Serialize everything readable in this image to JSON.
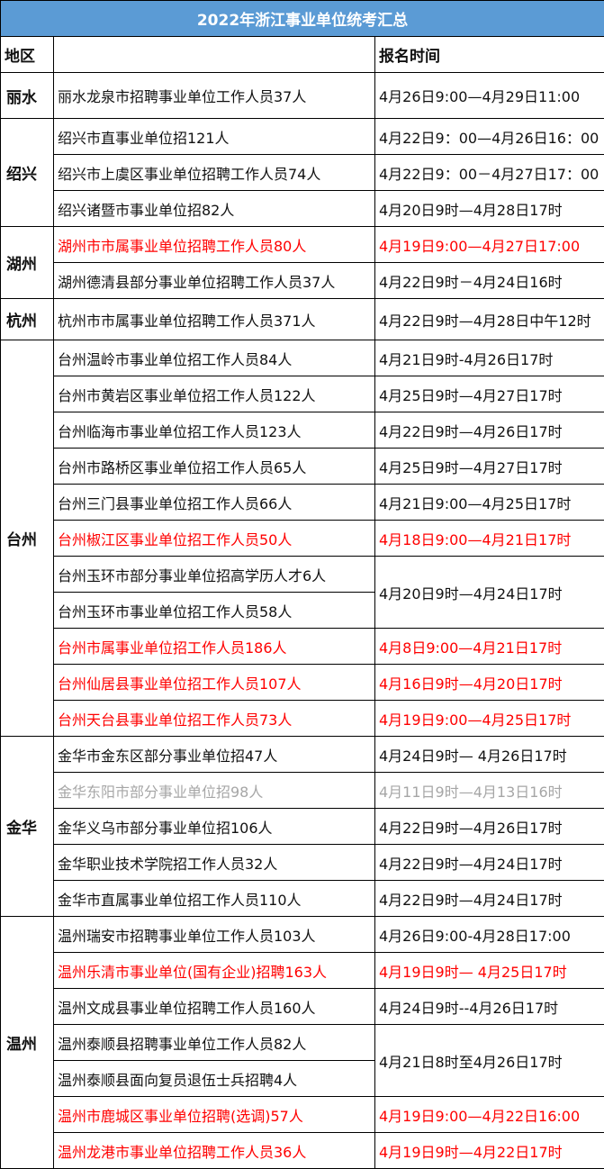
{
  "title": "2022年浙江事业单位统考汇总",
  "header": {
    "region": "地区",
    "item": "",
    "time": "报名时间"
  },
  "colors": {
    "title_bg": "#5b9bd5",
    "highlight": "#ff0000",
    "expired": "#a6a6a6"
  },
  "regions": [
    {
      "name": "丽水",
      "rows": [
        {
          "item": "丽水龙泉市招聘事业单位工作人员37人",
          "time": "4月26日9:00—4月29日11:00",
          "style": ""
        }
      ]
    },
    {
      "name": "绍兴",
      "rows": [
        {
          "item": "绍兴市直事业单位招121人",
          "time": "4月22日9：00—4月26日16：00",
          "style": ""
        },
        {
          "item": "绍兴市上虞区事业单位招聘工作人员74人",
          "time": "4月22日9：00－4月27日17：00",
          "style": ""
        },
        {
          "item": "绍兴诸暨市事业单位招82人",
          "time": "4月20日9时—4月28日17时",
          "style": ""
        }
      ]
    },
    {
      "name": "湖州",
      "rows": [
        {
          "item": "湖州市市属事业单位招聘工作人员80人",
          "time": "4月19日9:00—4月27日17:00",
          "style": "red"
        },
        {
          "item": "湖州德清县部分事业单位招聘工作人员37人",
          "time": "4月22日9时－4月24日16时",
          "style": ""
        }
      ]
    },
    {
      "name": "杭州",
      "rows": [
        {
          "item": "杭州市市属事业单位招聘工作人员371人",
          "time": "4月22日9时—4月28日中午12时",
          "style": ""
        }
      ]
    },
    {
      "name": "台州",
      "rows": [
        {
          "item": "台州温岭市事业单位招工作人员84人",
          "time": "4月21日9时-4月26日17时",
          "style": ""
        },
        {
          "item": "台州市黄岩区事业单位招工作人员122人",
          "time": "4月25日9时—4月27日17时",
          "style": ""
        },
        {
          "item": "台州临海市事业单位招工作人员123人",
          "time": "4月22日9时—4月26日17时",
          "style": ""
        },
        {
          "item": "台州市路桥区事业单位招工作人员65人",
          "time": "4月25日9时—4月27日17时",
          "style": ""
        },
        {
          "item": "台州三门县事业单位招工作人员66人",
          "time": "4月21日9:00—4月25日17时",
          "style": ""
        },
        {
          "item": "台州椒江区事业单位招工作人员50人",
          "time": "4月18日9:00—4月21日17时",
          "style": "red"
        },
        {
          "item": "台州玉环市部分事业单位招高学历人才6人",
          "time": "4月20日9时—4月24日17时",
          "style": "",
          "span": 2
        },
        {
          "item": "台州玉环市事业单位招工作人员58人",
          "time": null,
          "style": ""
        },
        {
          "item": "台州市属事业单位招工作人员186人",
          "time": "4月8日9:00—4月21日17时",
          "style": "red"
        },
        {
          "item": "台州仙居县事业单位招工作人员107人",
          "time": "4月16日9时—4月20日17时",
          "style": "red"
        },
        {
          "item": "台州天台县事业单位招工作人员73人",
          "time": "4月19日9:00—4月25日17时",
          "style": "red"
        }
      ]
    },
    {
      "name": "金华",
      "rows": [
        {
          "item": "金华市金东区部分事业单位招47人",
          "time": "4月24日9时— 4月26日17时",
          "style": ""
        },
        {
          "item": "金华东阳市部分事业单位招98人",
          "time": "4月11日9时—4月13日16时",
          "style": "gray"
        },
        {
          "item": "金华义乌市部分事业单位招106人",
          "time": "4月22日9时—4月26日17时",
          "style": ""
        },
        {
          "item": "金华职业技术学院招工作人员32人",
          "time": "4月22日9时—4月24日17时",
          "style": ""
        },
        {
          "item": "金华市直属事业单位招工作人员110人",
          "time": "4月22日9时—4月24日17时",
          "style": ""
        }
      ]
    },
    {
      "name": "温州",
      "rows": [
        {
          "item": "温州瑞安市招聘事业单位工作人员103人",
          "time": "4月26日9:00-4月28日17:00",
          "style": ""
        },
        {
          "item": "温州乐清市事业单位(国有企业)招聘163人",
          "time": "4月19日9时— 4月25日17时",
          "style": "red"
        },
        {
          "item": "温州文成县事业单位招聘工作人员160人",
          "time": "4月24日9时--4月26日17时",
          "style": ""
        },
        {
          "item": "温州泰顺县招聘事业单位工作人员82人",
          "time": "4月21日8时至4月26日17时",
          "style": "",
          "span": 2
        },
        {
          "item": "温州泰顺县面向复员退伍士兵招聘4人",
          "time": null,
          "style": ""
        },
        {
          "item": "温州市鹿城区事业单位招聘(选调)57人",
          "time": "4月19日9:00—4月22日16:00",
          "style": "red"
        },
        {
          "item": "温州龙港市事业单位招聘工作人员36人",
          "time": "4月19日9时—4月22日17时",
          "style": "red"
        }
      ]
    }
  ]
}
